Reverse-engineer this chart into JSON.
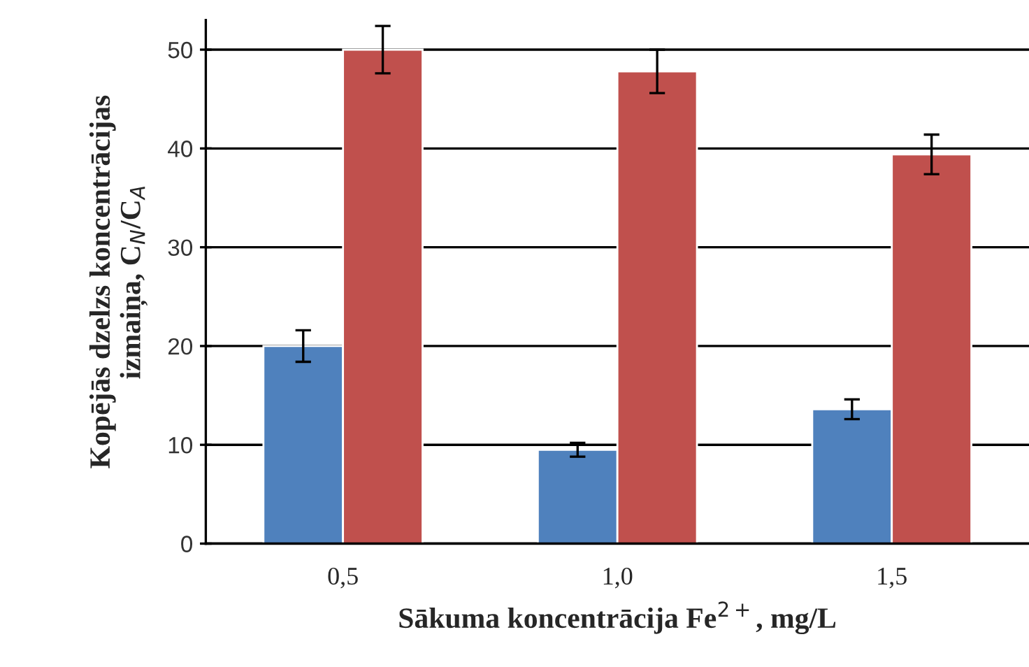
{
  "chart_data": {
    "type": "bar",
    "xlabel": "Sākuma koncentrācija Fe$^{2+}$, mg/L",
    "ylabel": "Kopējās dzelzs koncentrācijas\nizmaiņa, C$_{N}$/C$_{A}$",
    "categories": [
      "0,5",
      "1,0",
      "1,5"
    ],
    "series": [
      {
        "color": "#4f81bd",
        "values": [
          20,
          9.5,
          13.6
        ],
        "errors": [
          1.6,
          0.7,
          1.0
        ]
      },
      {
        "color": "#c0504d",
        "values": [
          50,
          47.8,
          39.4
        ],
        "errors": [
          2.4,
          2.2,
          2.0
        ]
      }
    ],
    "ylim": [
      0,
      53
    ],
    "yticks": [
      0,
      10,
      20,
      30,
      40,
      50
    ],
    "grid": "y",
    "legend": false
  }
}
